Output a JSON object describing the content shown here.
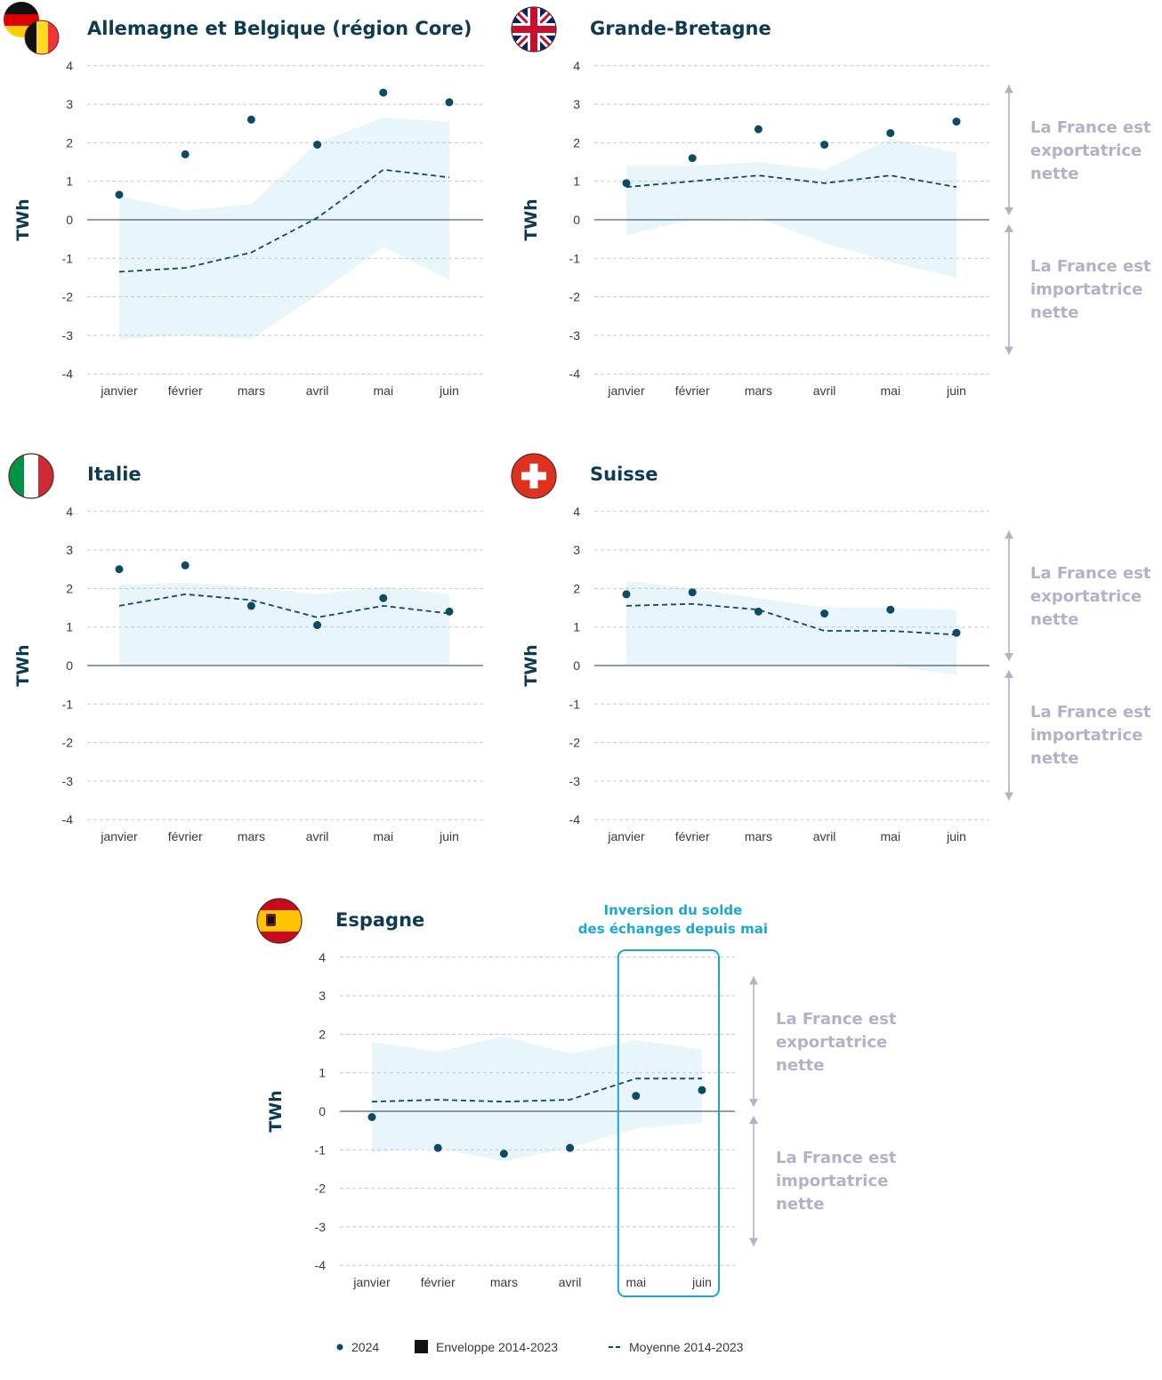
{
  "colors": {
    "point": "#0d4a63",
    "envelope": "#e8f5fb",
    "mean_line": "#0d4a63",
    "grid": "#c8c8c8",
    "zero_line": "#1f3b4d",
    "side_text": "#b3b1c8",
    "annotation": "#1aa7d2"
  },
  "y_axis_label": "TWh",
  "side_labels": {
    "export": [
      "La France est",
      "exportatrice",
      "nette"
    ],
    "import": [
      "La France est",
      "importatrice",
      "nette"
    ]
  },
  "annotation": {
    "lines": [
      "Inversion du solde",
      "des échanges depuis mai"
    ],
    "highlight_months": [
      "mai",
      "juin"
    ]
  },
  "legend": {
    "points_label": "2024",
    "envelope_label": "Enveloppe 2014-2023",
    "mean_label": "Moyenne 2014-2023"
  },
  "chart_data": [
    {
      "type": "line",
      "title": "Allemagne et Belgique (région Core)",
      "flag": "germany-belgium-flag-icon",
      "ylabel": "TWh",
      "categories": [
        "janvier",
        "février",
        "mars",
        "avril",
        "mai",
        "juin"
      ],
      "ylim": [
        -4,
        4
      ],
      "yticks": [
        4,
        3,
        2,
        1,
        0,
        -1,
        -2,
        -3,
        -4
      ],
      "grid": true,
      "series": [
        {
          "name": "2024",
          "kind": "points",
          "values": [
            0.65,
            1.7,
            2.6,
            1.95,
            3.3,
            3.05
          ]
        },
        {
          "name": "Moyenne 2014-2023",
          "kind": "dashed-line",
          "values": [
            -1.35,
            -1.25,
            -0.85,
            0.05,
            1.3,
            1.1
          ]
        },
        {
          "name": "Enveloppe 2014-2023",
          "kind": "band",
          "upper": [
            0.6,
            0.25,
            0.4,
            2.0,
            2.65,
            2.55
          ],
          "lower": [
            -3.1,
            -3.0,
            -3.1,
            -1.95,
            -0.7,
            -1.55
          ]
        }
      ]
    },
    {
      "type": "line",
      "title": "Grande-Bretagne",
      "flag": "uk-flag-icon",
      "ylabel": "TWh",
      "categories": [
        "janvier",
        "février",
        "mars",
        "avril",
        "mai",
        "juin"
      ],
      "ylim": [
        -4,
        4
      ],
      "yticks": [
        4,
        3,
        2,
        1,
        0,
        -1,
        -2,
        -3,
        -4
      ],
      "grid": true,
      "series": [
        {
          "name": "2024",
          "kind": "points",
          "values": [
            0.95,
            1.6,
            2.35,
            1.95,
            2.25,
            2.55
          ]
        },
        {
          "name": "Moyenne 2014-2023",
          "kind": "dashed-line",
          "values": [
            0.85,
            1.0,
            1.15,
            0.95,
            1.15,
            0.85
          ]
        },
        {
          "name": "Enveloppe 2014-2023",
          "kind": "band",
          "upper": [
            1.4,
            1.4,
            1.5,
            1.3,
            2.1,
            1.75
          ],
          "lower": [
            -0.4,
            0.0,
            0.05,
            -0.6,
            -1.1,
            -1.5
          ]
        }
      ]
    },
    {
      "type": "line",
      "title": "Italie",
      "flag": "italy-flag-icon",
      "ylabel": "TWh",
      "categories": [
        "janvier",
        "février",
        "mars",
        "avril",
        "mai",
        "juin"
      ],
      "ylim": [
        -4,
        4
      ],
      "yticks": [
        4,
        3,
        2,
        1,
        0,
        -1,
        -2,
        -3,
        -4
      ],
      "grid": true,
      "series": [
        {
          "name": "2024",
          "kind": "points",
          "values": [
            2.5,
            2.6,
            1.55,
            1.05,
            1.75,
            1.4
          ]
        },
        {
          "name": "Moyenne 2014-2023",
          "kind": "dashed-line",
          "values": [
            1.55,
            1.85,
            1.7,
            1.25,
            1.55,
            1.35
          ]
        },
        {
          "name": "Enveloppe 2014-2023",
          "kind": "band",
          "upper": [
            2.1,
            2.15,
            2.05,
            1.85,
            2.05,
            1.85
          ],
          "lower": [
            0.0,
            0.0,
            0.0,
            0.0,
            0.0,
            0.0
          ]
        }
      ]
    },
    {
      "type": "line",
      "title": "Suisse",
      "flag": "switzerland-flag-icon",
      "ylabel": "TWh",
      "categories": [
        "janvier",
        "février",
        "mars",
        "avril",
        "mai",
        "juin"
      ],
      "ylim": [
        -4,
        4
      ],
      "yticks": [
        4,
        3,
        2,
        1,
        0,
        -1,
        -2,
        -3,
        -4
      ],
      "grid": true,
      "series": [
        {
          "name": "2024",
          "kind": "points",
          "values": [
            1.85,
            1.9,
            1.4,
            1.35,
            1.45,
            0.85
          ]
        },
        {
          "name": "Moyenne 2014-2023",
          "kind": "dashed-line",
          "values": [
            1.55,
            1.6,
            1.45,
            0.9,
            0.9,
            0.8
          ]
        },
        {
          "name": "Enveloppe 2014-2023",
          "kind": "band",
          "upper": [
            2.2,
            2.0,
            1.75,
            1.5,
            1.5,
            1.45
          ],
          "lower": [
            0.0,
            0.0,
            0.0,
            0.0,
            0.0,
            -0.25
          ]
        }
      ]
    },
    {
      "type": "line",
      "title": "Espagne",
      "flag": "spain-flag-icon",
      "ylabel": "TWh",
      "categories": [
        "janvier",
        "février",
        "mars",
        "avril",
        "mai",
        "juin"
      ],
      "ylim": [
        -4,
        4
      ],
      "yticks": [
        4,
        3,
        2,
        1,
        0,
        -1,
        -2,
        -3,
        -4
      ],
      "grid": true,
      "series": [
        {
          "name": "2024",
          "kind": "points",
          "values": [
            -0.15,
            -0.95,
            -1.1,
            -0.95,
            0.4,
            0.55
          ]
        },
        {
          "name": "Moyenne 2014-2023",
          "kind": "dashed-line",
          "values": [
            0.25,
            0.3,
            0.25,
            0.3,
            0.85,
            0.85
          ]
        },
        {
          "name": "Enveloppe 2014-2023",
          "kind": "band",
          "upper": [
            1.8,
            1.55,
            1.95,
            1.5,
            1.85,
            1.6
          ],
          "lower": [
            -1.05,
            -0.95,
            -1.3,
            -0.95,
            -0.45,
            -0.3
          ]
        }
      ]
    }
  ]
}
